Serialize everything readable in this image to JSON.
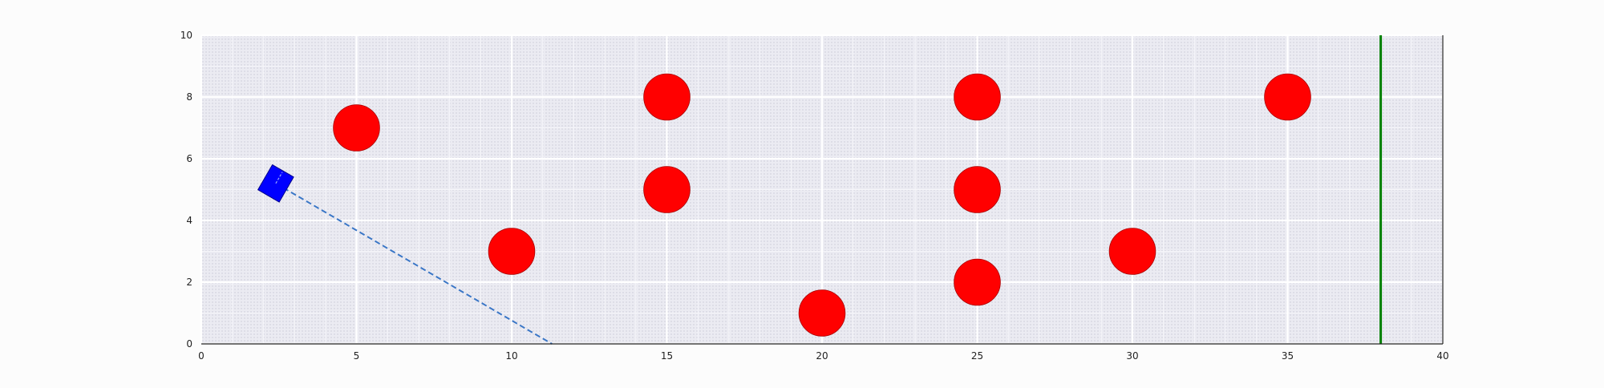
{
  "chart_data": {
    "type": "scatter",
    "title": "",
    "xlabel": "",
    "ylabel": "",
    "xlim": [
      0,
      40
    ],
    "ylim": [
      0,
      10
    ],
    "grid": true,
    "xticks": [
      0,
      5,
      10,
      15,
      20,
      25,
      30,
      35,
      40
    ],
    "yticks": [
      0,
      2,
      4,
      6,
      8,
      10
    ],
    "xtick_labels": [
      "0",
      "5",
      "10",
      "15",
      "20",
      "25",
      "30",
      "35",
      "40"
    ],
    "ytick_labels": [
      "0",
      "2",
      "4",
      "6",
      "8",
      "10"
    ],
    "series": [
      {
        "kind": "obstacles",
        "marker": "circle",
        "radius": 0.75,
        "color": "#ff0000",
        "points": [
          {
            "x": 5,
            "y": 7
          },
          {
            "x": 10,
            "y": 3
          },
          {
            "x": 15,
            "y": 8
          },
          {
            "x": 15,
            "y": 5
          },
          {
            "x": 20,
            "y": 1
          },
          {
            "x": 25,
            "y": 8
          },
          {
            "x": 25,
            "y": 5
          },
          {
            "x": 25,
            "y": 2
          },
          {
            "x": 30,
            "y": 3
          },
          {
            "x": 35,
            "y": 8
          }
        ]
      },
      {
        "kind": "agent",
        "marker": "square",
        "color": "#0000ff",
        "x": 2.4,
        "y": 5.2,
        "angle_deg": -60
      },
      {
        "kind": "trajectory",
        "style": "dashed",
        "color": "#3a76c6",
        "points": [
          {
            "x": 2.4,
            "y": 5.2
          },
          {
            "x": 11.3,
            "y": 0
          }
        ]
      },
      {
        "kind": "goal-line",
        "style": "vertical",
        "color": "#008000",
        "x": 38
      }
    ]
  }
}
